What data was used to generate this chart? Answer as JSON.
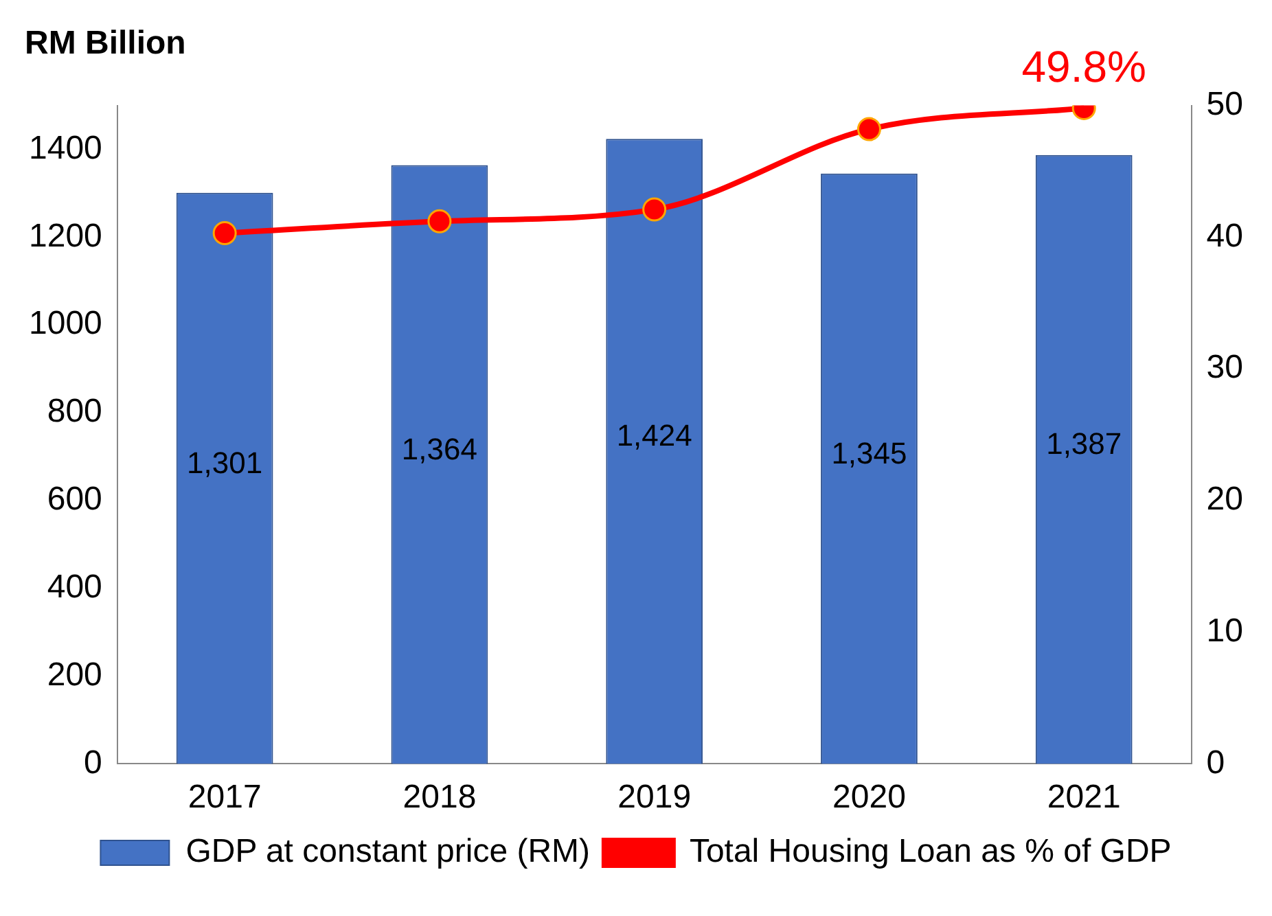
{
  "chart_data": {
    "type": "bar",
    "title": "RM Billion",
    "categories": [
      "2017",
      "2018",
      "2019",
      "2020",
      "2021"
    ],
    "series": [
      {
        "name": "GDP at constant price (RM)",
        "color": "#4472c4",
        "values": [
          1301,
          1364,
          1424,
          1345,
          1387
        ],
        "value_labels": [
          "1,301",
          "1,364",
          "1,424",
          "1,345",
          "1,387"
        ]
      },
      {
        "name": "Total Housing Loan as % of GDP",
        "type": "line",
        "axis": "y2",
        "color": "#ff0000",
        "marker": "circle",
        "values": [
          40.3,
          41.2,
          42.1,
          48.2,
          49.8
        ],
        "value_labels": [
          null,
          null,
          null,
          null,
          "49.8%"
        ]
      }
    ],
    "ylim": [
      0,
      1500
    ],
    "yticks": [
      0,
      200,
      400,
      600,
      800,
      1000,
      1200,
      1400
    ],
    "y2lim": [
      0,
      50
    ],
    "y2ticks": [
      0,
      10,
      20,
      30,
      40,
      50
    ],
    "grid": false,
    "legend": "bottom"
  }
}
